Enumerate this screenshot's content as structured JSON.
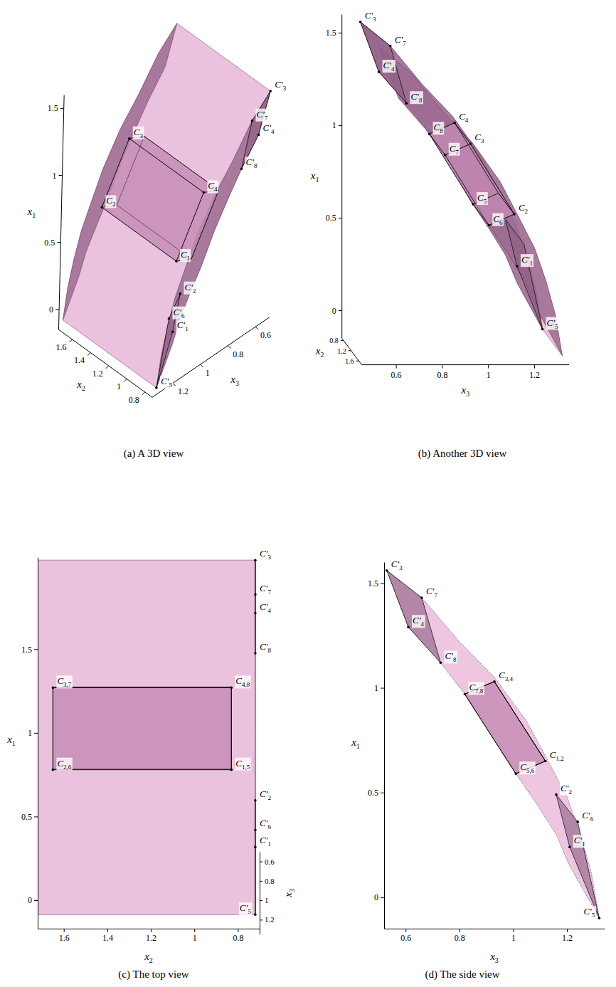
{
  "chart_data": [
    {
      "type": "surface3d",
      "title": "(a) A 3D view",
      "axes": {
        "x1": {
          "label": "x",
          "sub": "1",
          "lim": [
            -0.15,
            1.6
          ],
          "ticks": [
            0,
            0.5,
            1,
            1.5
          ]
        },
        "x2": {
          "label": "x",
          "sub": "2",
          "lim": [
            0.72,
            1.75
          ],
          "ticks": [
            0.8,
            1,
            1.2,
            1.4,
            1.6
          ]
        },
        "x3": {
          "label": "x",
          "sub": "3",
          "lim": [
            0.5,
            1.35
          ],
          "ticks": [
            0.6,
            0.8,
            1,
            1.2
          ]
        }
      },
      "sheet": {
        "x2": [
          0.72,
          1.75
        ],
        "outer": {
          "x1": [
            1.56,
            1.43,
            1.22,
            1.05,
            0.84,
            0.65,
            0.48,
            0.3,
            0.12,
            -0.1
          ],
          "x3": [
            0.53,
            0.66,
            0.8,
            0.93,
            1.05,
            1.13,
            1.2,
            1.25,
            1.29,
            1.32
          ]
        },
        "inner": {
          "x1": [
            1.56,
            1.29,
            1.12,
            0.97,
            0.79,
            0.59,
            0.44,
            0.3,
            0.15,
            -0.1
          ],
          "x3": [
            0.53,
            0.61,
            0.73,
            0.82,
            0.92,
            1.01,
            1.09,
            1.16,
            1.21,
            1.32
          ]
        }
      },
      "points": [
        {
          "label": {
            "text": "C",
            "sub": "1"
          },
          "x1": 0.65,
          "x2": 0.83,
          "x3": 1.12
        },
        {
          "label": {
            "text": "C",
            "sub": "2"
          },
          "x1": 0.65,
          "x2": 1.65,
          "x3": 1.12
        },
        {
          "label": {
            "text": "C",
            "sub": "3"
          },
          "x1": 1.03,
          "x2": 1.65,
          "x3": 0.93
        },
        {
          "label": {
            "text": "C",
            "sub": "4"
          },
          "x1": 1.03,
          "x2": 0.83,
          "x3": 0.93
        },
        {
          "label": null,
          "x1": 0.59,
          "x2": 0.83,
          "x3": 1.01
        },
        {
          "label": null,
          "x1": 0.59,
          "x2": 1.65,
          "x3": 1.01
        },
        {
          "label": null,
          "x1": 0.97,
          "x2": 1.65,
          "x3": 0.82
        },
        {
          "label": null,
          "x1": 0.97,
          "x2": 0.83,
          "x3": 0.82
        },
        {
          "label": {
            "text": "C′",
            "sub": "1"
          },
          "x1": 0.24,
          "x2": 0.72,
          "x3": 1.21
        },
        {
          "label": {
            "text": "C′",
            "sub": "2"
          },
          "x1": 0.49,
          "x2": 0.72,
          "x3": 1.16
        },
        {
          "label": {
            "text": "C′",
            "sub": "3"
          },
          "x1": 1.56,
          "x2": 0.72,
          "x3": 0.53
        },
        {
          "label": {
            "text": "C′",
            "sub": "4"
          },
          "x1": 1.29,
          "x2": 0.72,
          "x3": 0.61
        },
        {
          "label": {
            "text": "C′",
            "sub": "5"
          },
          "x1": -0.1,
          "x2": 0.72,
          "x3": 1.32
        },
        {
          "label": {
            "text": "C′",
            "sub": "6"
          },
          "x1": 0.36,
          "x2": 0.72,
          "x3": 1.24
        },
        {
          "label": {
            "text": "C′",
            "sub": "7"
          },
          "x1": 1.43,
          "x2": 0.72,
          "x3": 0.66
        },
        {
          "label": {
            "text": "C′",
            "sub": "8"
          },
          "x1": 1.12,
          "x2": 0.72,
          "x3": 0.73
        }
      ]
    },
    {
      "type": "surface3d",
      "title": "(b) Another 3D view",
      "axes": {
        "x1": {
          "label": "x",
          "sub": "1",
          "lim": [
            -0.15,
            1.6
          ],
          "ticks": [
            0,
            0.5,
            1,
            1.5
          ]
        },
        "x2": {
          "label": "x",
          "sub": "2",
          "lim": [
            0.72,
            1.75
          ],
          "ticks": [
            0.8,
            1.2,
            1.6
          ]
        },
        "x3": {
          "label": "x",
          "sub": "3",
          "lim": [
            0.45,
            1.35
          ],
          "ticks": [
            0.6,
            0.8,
            1,
            1.2
          ]
        }
      },
      "sheet": {
        "x2": [
          0.72,
          1.75
        ],
        "outer": {
          "x1": [
            1.56,
            1.43,
            1.22,
            1.05,
            0.84,
            0.65,
            0.48,
            0.3,
            0.12,
            -0.1
          ],
          "x3": [
            0.53,
            0.66,
            0.8,
            0.93,
            1.05,
            1.13,
            1.2,
            1.25,
            1.29,
            1.32
          ]
        },
        "inner": {
          "x1": [
            1.56,
            1.29,
            1.12,
            0.97,
            0.79,
            0.59,
            0.44,
            0.3,
            0.15,
            -0.1
          ],
          "x3": [
            0.53,
            0.61,
            0.73,
            0.82,
            0.92,
            1.01,
            1.09,
            1.16,
            1.21,
            1.32
          ]
        }
      },
      "points": [
        {
          "label": null,
          "x1": 0.65,
          "x2": 0.83,
          "x3": 1.12
        },
        {
          "label": {
            "text": "C",
            "sub": "2"
          },
          "x1": 0.65,
          "x2": 1.65,
          "x3": 1.12
        },
        {
          "label": {
            "text": "C",
            "sub": "3"
          },
          "x1": 1.03,
          "x2": 1.65,
          "x3": 0.93
        },
        {
          "label": {
            "text": "C",
            "sub": "4"
          },
          "x1": 1.03,
          "x2": 0.83,
          "x3": 0.93
        },
        {
          "label": {
            "text": "C",
            "sub": "5"
          },
          "x1": 0.59,
          "x2": 0.83,
          "x3": 1.01
        },
        {
          "label": {
            "text": "C",
            "sub": "6"
          },
          "x1": 0.59,
          "x2": 1.65,
          "x3": 1.01
        },
        {
          "label": {
            "text": "C",
            "sub": "7"
          },
          "x1": 0.97,
          "x2": 1.65,
          "x3": 0.82
        },
        {
          "label": {
            "text": "C",
            "sub": "8"
          },
          "x1": 0.97,
          "x2": 0.83,
          "x3": 0.82
        },
        {
          "label": {
            "text": "C′",
            "sub": "1"
          },
          "x1": 0.24,
          "x2": 0.72,
          "x3": 1.21
        },
        {
          "label": null,
          "x1": 0.49,
          "x2": 0.72,
          "x3": 1.16
        },
        {
          "label": {
            "text": "C′",
            "sub": "3"
          },
          "x1": 1.56,
          "x2": 0.72,
          "x3": 0.53
        },
        {
          "label": {
            "text": "C′",
            "sub": "4"
          },
          "x1": 1.29,
          "x2": 0.72,
          "x3": 0.61
        },
        {
          "label": {
            "text": "C′",
            "sub": "5"
          },
          "x1": -0.1,
          "x2": 0.72,
          "x3": 1.32
        },
        {
          "label": null,
          "x1": 0.36,
          "x2": 0.72,
          "x3": 1.24
        },
        {
          "label": {
            "text": "C′",
            "sub": "7"
          },
          "x1": 1.43,
          "x2": 0.72,
          "x3": 0.66
        },
        {
          "label": {
            "text": "C′",
            "sub": "8"
          },
          "x1": 1.12,
          "x2": 0.72,
          "x3": 0.73
        }
      ]
    },
    {
      "type": "surface3d",
      "title": "(c) The top view",
      "axes": {
        "x1": {
          "label": "x",
          "sub": "1",
          "lim": [
            -0.17,
            2.05
          ],
          "ticks": [
            0,
            0.5,
            1,
            1.5
          ]
        },
        "x2": {
          "label": "x",
          "sub": "2",
          "lim": [
            1.72,
            0.7
          ],
          "ticks": [
            1.6,
            1.4,
            1.2,
            1,
            0.8
          ]
        },
        "x3": {
          "label": "x",
          "sub": "3",
          "lim": [
            0.5,
            1.35
          ],
          "ticks": [
            0.6,
            0.8,
            1,
            1.2
          ]
        }
      },
      "sheet": {
        "x2": [
          0.72,
          1.75
        ],
        "outer": {
          "x1": [
            1.56,
            1.43,
            1.22,
            1.05,
            0.84,
            0.65,
            0.48,
            0.3,
            0.12,
            -0.1
          ],
          "x3": [
            0.53,
            0.66,
            0.8,
            0.93,
            1.05,
            1.13,
            1.2,
            1.25,
            1.29,
            1.32
          ]
        },
        "inner": {
          "x1": [
            1.56,
            1.29,
            1.12,
            0.97,
            0.79,
            0.59,
            0.44,
            0.3,
            0.15,
            -0.1
          ],
          "x3": [
            0.53,
            0.61,
            0.73,
            0.82,
            0.92,
            1.01,
            1.09,
            1.16,
            1.21,
            1.32
          ]
        }
      },
      "points": [
        {
          "label": {
            "text": "C",
            "sub": "1,5"
          },
          "x1": 0.65,
          "x2": 0.83,
          "x3": 1.12
        },
        {
          "label": {
            "text": "C",
            "sub": "2,6"
          },
          "x1": 0.65,
          "x2": 1.65,
          "x3": 1.12
        },
        {
          "label": {
            "text": "C",
            "sub": "3,7"
          },
          "x1": 1.03,
          "x2": 1.65,
          "x3": 0.93
        },
        {
          "label": {
            "text": "C",
            "sub": "4,8"
          },
          "x1": 1.03,
          "x2": 0.83,
          "x3": 0.93
        },
        {
          "label": null,
          "x1": 0.59,
          "x2": 0.83,
          "x3": 1.01
        },
        {
          "label": null,
          "x1": 0.59,
          "x2": 1.65,
          "x3": 1.01
        },
        {
          "label": null,
          "x1": 0.97,
          "x2": 1.65,
          "x3": 0.82
        },
        {
          "label": null,
          "x1": 0.97,
          "x2": 0.83,
          "x3": 0.82
        },
        {
          "label": {
            "text": "C′",
            "sub": "1"
          },
          "x1": 0.24,
          "x2": 0.72,
          "x3": 1.21
        },
        {
          "label": {
            "text": "C′",
            "sub": "2"
          },
          "x1": 0.49,
          "x2": 0.72,
          "x3": 1.16
        },
        {
          "label": {
            "text": "C′",
            "sub": "3"
          },
          "x1": 1.56,
          "x2": 0.72,
          "x3": 0.53
        },
        {
          "label": {
            "text": "C′",
            "sub": "4"
          },
          "x1": 1.29,
          "x2": 0.72,
          "x3": 0.61
        },
        {
          "label": {
            "text": "C′",
            "sub": "5"
          },
          "x1": -0.1,
          "x2": 0.72,
          "x3": 1.32
        },
        {
          "label": {
            "text": "C′",
            "sub": "6"
          },
          "x1": 0.36,
          "x2": 0.72,
          "x3": 1.24
        },
        {
          "label": {
            "text": "C′",
            "sub": "7"
          },
          "x1": 1.43,
          "x2": 0.72,
          "x3": 0.66
        },
        {
          "label": {
            "text": "C′",
            "sub": "8"
          },
          "x1": 1.12,
          "x2": 0.72,
          "x3": 0.73
        }
      ]
    },
    {
      "type": "surface2d",
      "title": "(d) The side view",
      "axes": {
        "x1": {
          "label": "x",
          "sub": "1",
          "lim": [
            -0.15,
            1.6
          ],
          "ticks": [
            0,
            0.5,
            1,
            1.5
          ]
        },
        "x3": {
          "label": "x",
          "sub": "3",
          "lim": [
            0.52,
            1.34
          ],
          "ticks": [
            0.6,
            0.8,
            1,
            1.2
          ]
        }
      },
      "sheet": {
        "outer": {
          "x1": [
            1.56,
            1.43,
            1.22,
            1.05,
            0.84,
            0.65,
            0.48,
            0.3,
            0.12,
            -0.1
          ],
          "x3": [
            0.53,
            0.66,
            0.8,
            0.93,
            1.05,
            1.13,
            1.2,
            1.25,
            1.29,
            1.32
          ]
        },
        "inner": {
          "x1": [
            1.56,
            1.29,
            1.12,
            0.97,
            0.79,
            0.59,
            0.44,
            0.3,
            0.15,
            -0.1
          ],
          "x3": [
            0.53,
            0.61,
            0.73,
            0.82,
            0.92,
            1.01,
            1.09,
            1.16,
            1.21,
            1.32
          ]
        }
      },
      "points": [
        {
          "label": {
            "text": "C",
            "sub": "1,2"
          },
          "x1": 0.65,
          "x3": 1.12
        },
        {
          "label": null,
          "x1": 0.65,
          "x3": 1.12
        },
        {
          "label": {
            "text": "C",
            "sub": "3,4"
          },
          "x1": 1.03,
          "x3": 0.93
        },
        {
          "label": null,
          "x1": 1.03,
          "x3": 0.93
        },
        {
          "label": {
            "text": "C",
            "sub": "5,6"
          },
          "x1": 0.59,
          "x3": 1.01
        },
        {
          "label": null,
          "x1": 0.59,
          "x3": 1.01
        },
        {
          "label": {
            "text": "C",
            "sub": "7,8"
          },
          "x1": 0.97,
          "x3": 0.82
        },
        {
          "label": null,
          "x1": 0.97,
          "x3": 0.82
        },
        {
          "label": {
            "text": "C′",
            "sub": "1"
          },
          "x1": 0.24,
          "x3": 1.21
        },
        {
          "label": {
            "text": "C′",
            "sub": "2"
          },
          "x1": 0.49,
          "x3": 1.16
        },
        {
          "label": {
            "text": "C′",
            "sub": "3"
          },
          "x1": 1.56,
          "x3": 0.53
        },
        {
          "label": {
            "text": "C′",
            "sub": "4"
          },
          "x1": 1.29,
          "x3": 0.61
        },
        {
          "label": {
            "text": "C′",
            "sub": "5"
          },
          "x1": -0.1,
          "x3": 1.32
        },
        {
          "label": {
            "text": "C′",
            "sub": "6"
          },
          "x1": 0.36,
          "x3": 1.24
        },
        {
          "label": {
            "text": "C′",
            "sub": "7"
          },
          "x1": 1.43,
          "x3": 0.66
        },
        {
          "label": {
            "text": "C′",
            "sub": "8"
          },
          "x1": 1.12,
          "x3": 0.73
        }
      ]
    }
  ]
}
